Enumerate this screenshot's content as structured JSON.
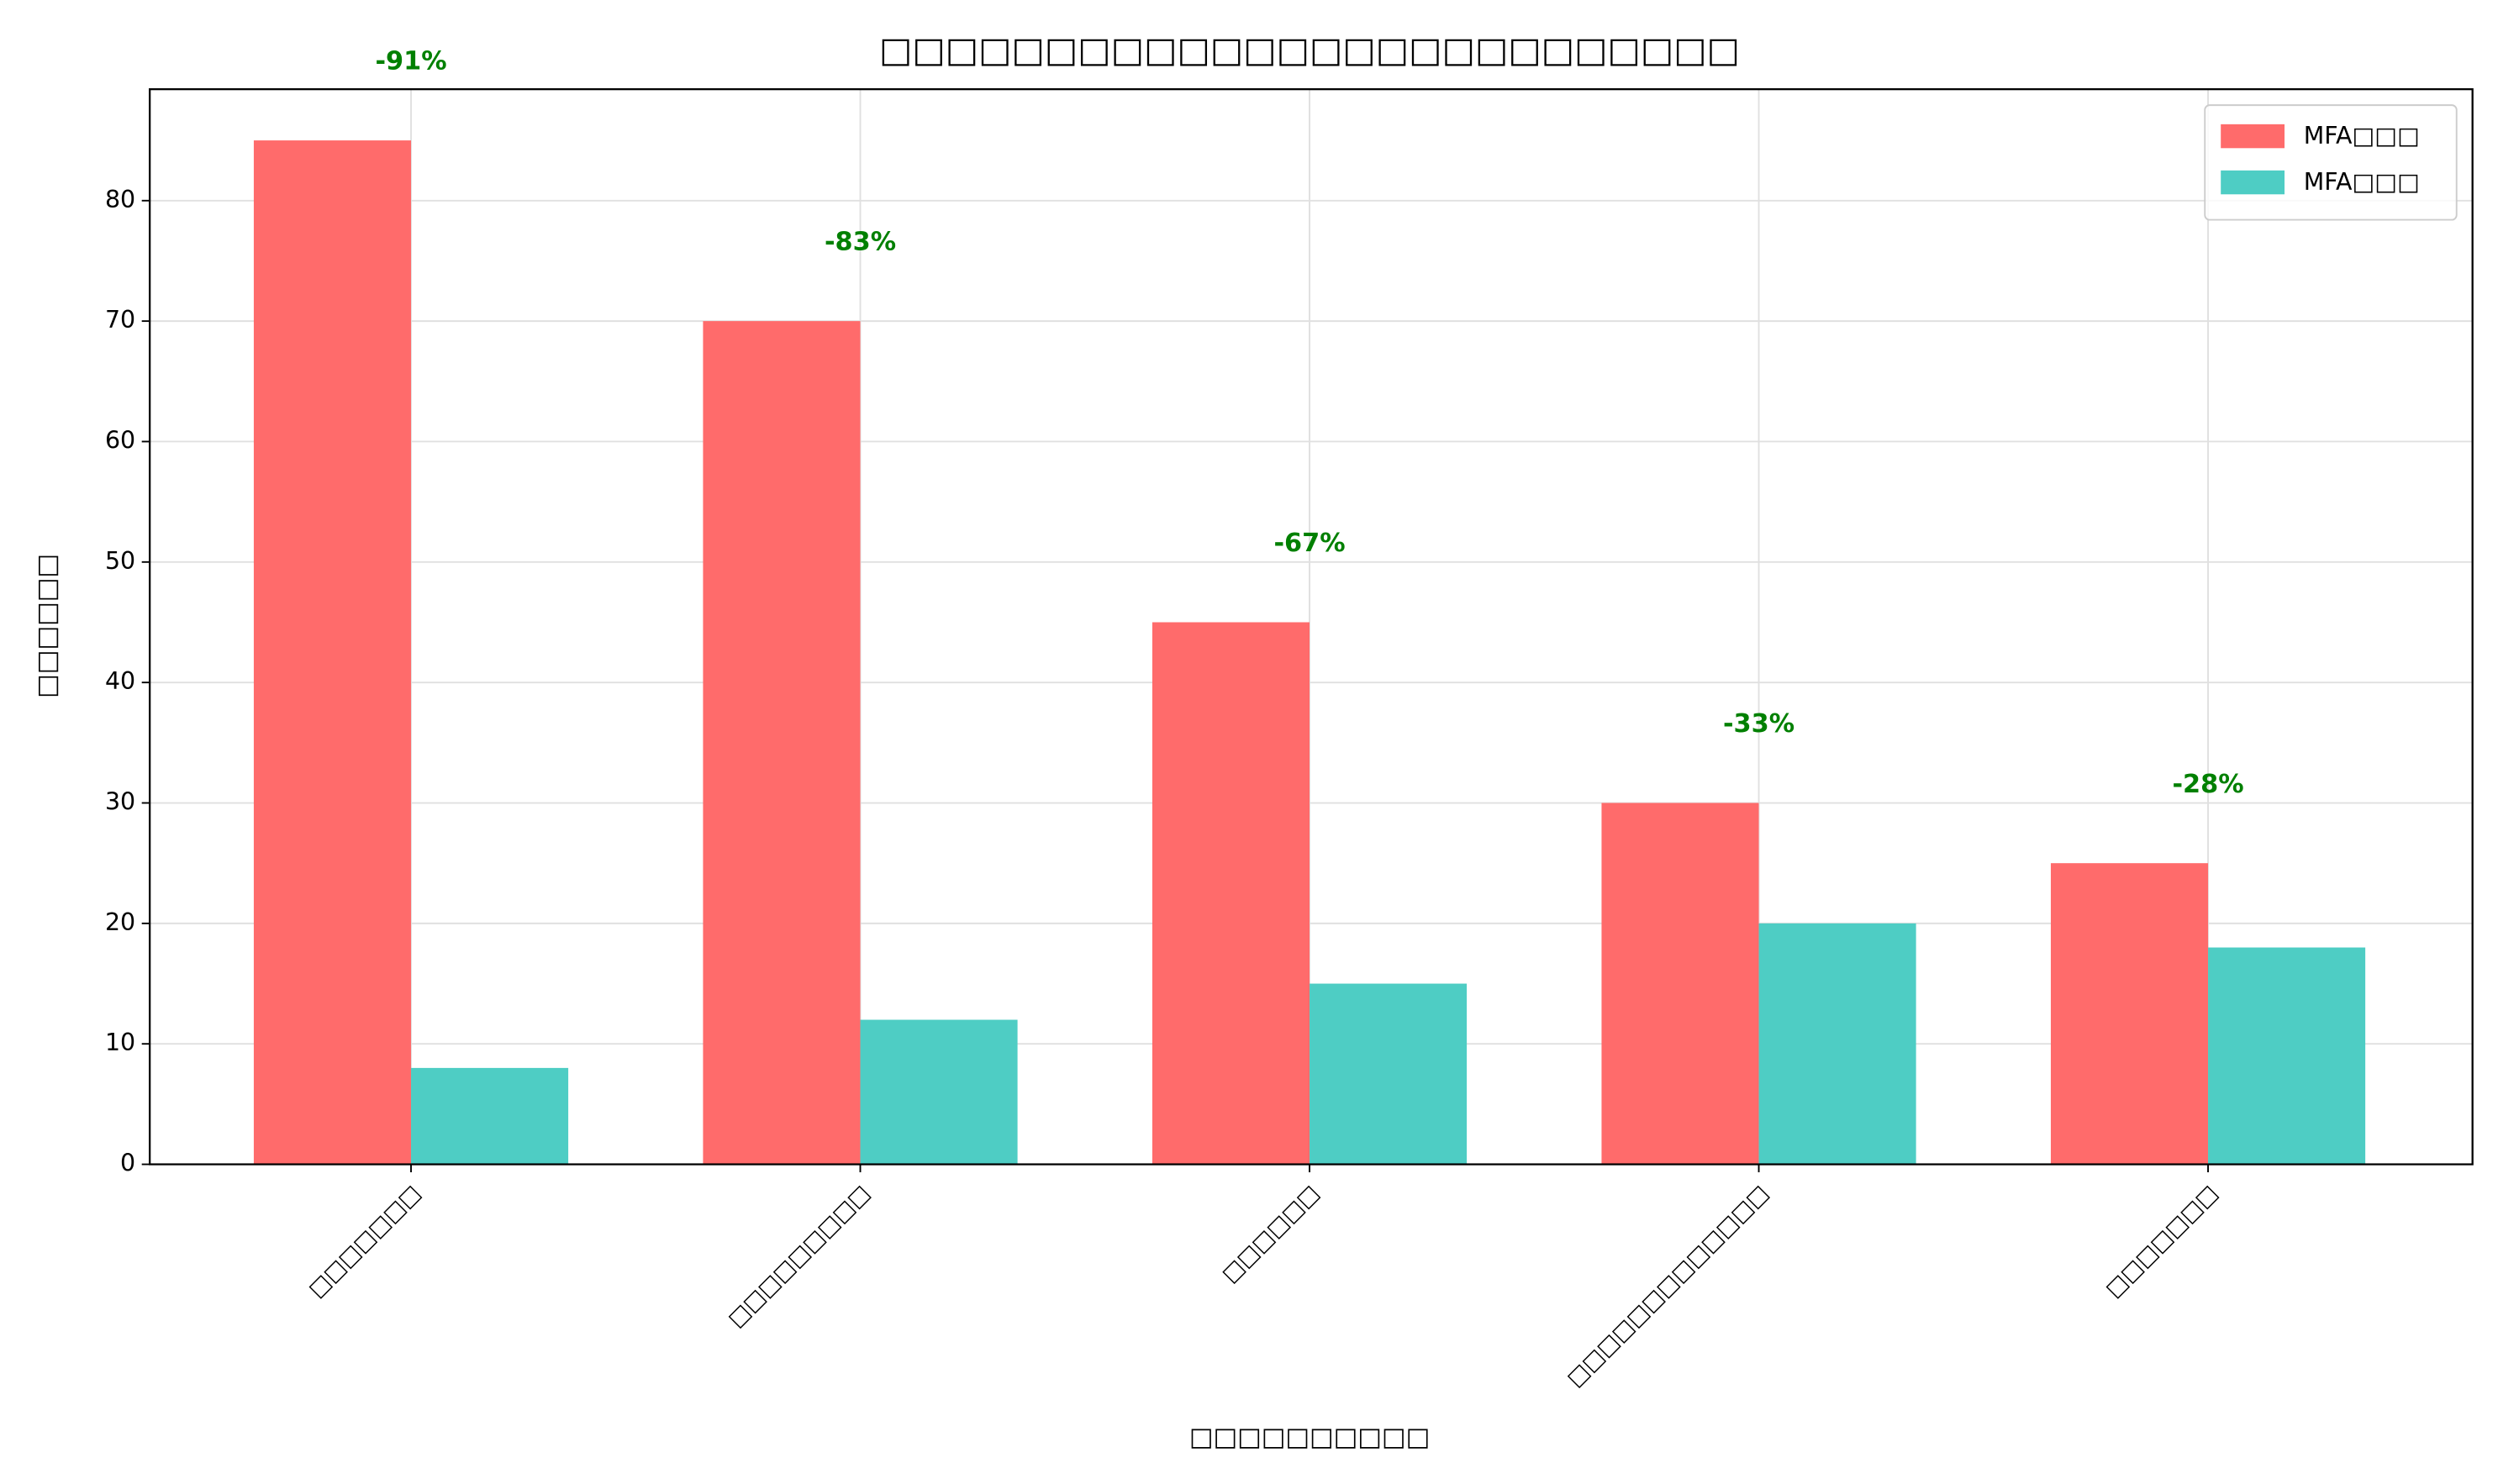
{
  "chart_data": {
    "type": "bar",
    "title": "□□□□□□□□□□□□□□□□□□□□□□□□□□",
    "xlabel": "□□□□□□□□□□",
    "ylabel": "□□□□□□",
    "categories": [
      "□□□□□□□",
      "□□□□□□□□□",
      "□□□□□□",
      "□□□□□□□□□□□□□",
      "□□□□□□□"
    ],
    "series": [
      {
        "name": "MFA□□□",
        "color": "#ff6b6b",
        "values": [
          85,
          70,
          45,
          30,
          25
        ]
      },
      {
        "name": "MFA□□□",
        "color": "#4ecdc4",
        "values": [
          8,
          12,
          15,
          20,
          18
        ]
      }
    ],
    "annotations": [
      "-91%",
      "-83%",
      "-67%",
      "-33%",
      "-28%"
    ],
    "annotation_color": "#008000",
    "ylim": [
      0,
      89.25
    ],
    "yticks": [
      0,
      10,
      20,
      30,
      40,
      50,
      60,
      70,
      80
    ],
    "grid": true,
    "legend": "upper right"
  }
}
